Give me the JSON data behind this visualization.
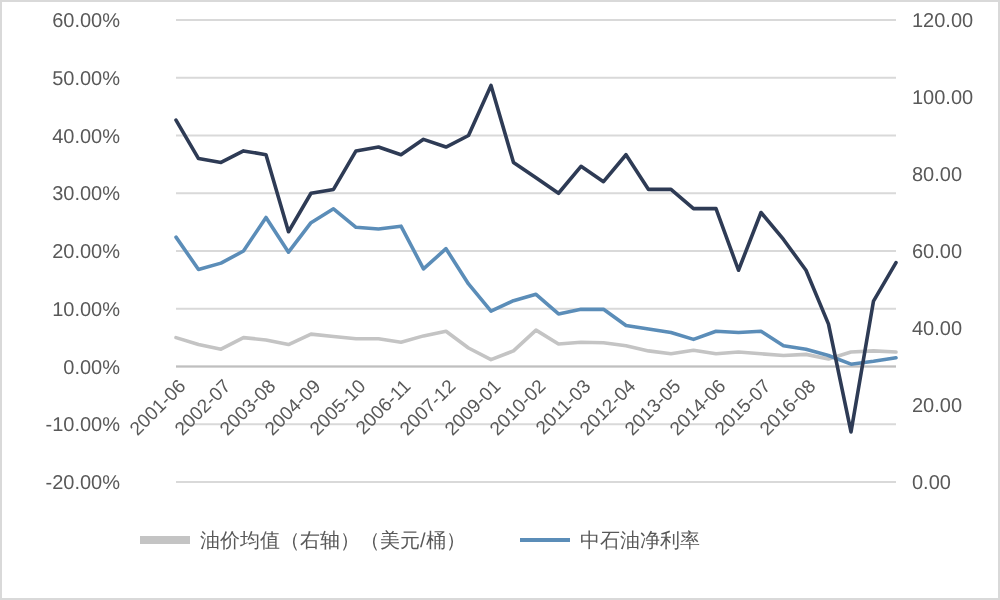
{
  "chart_data": {
    "type": "line",
    "categories": [
      "2001-06",
      null,
      "2002-07",
      null,
      "2003-08",
      null,
      "2004-09",
      null,
      "2005-10",
      null,
      "2006-11",
      null,
      "2007-12",
      null,
      "2009-01",
      null,
      "2010-02",
      null,
      "2011-03",
      null,
      "2012-04",
      null,
      "2013-05",
      null,
      "2014-06",
      null,
      "2015-07",
      null,
      "2016-08",
      null,
      null,
      null,
      null
    ],
    "series": [
      {
        "name": "油价均值（右轴）（美元/桶）",
        "color": "#c4c4c4",
        "values": [
          5.0,
          3.8,
          3.0,
          5.0,
          4.6,
          3.8,
          5.6,
          5.2,
          4.8,
          4.8,
          4.2,
          5.3,
          6.1,
          3.2,
          1.2,
          2.7,
          6.3,
          3.9,
          4.2,
          4.1,
          3.6,
          2.7,
          2.2,
          2.8,
          2.2,
          2.5,
          2.2,
          1.9,
          2.1,
          1.3,
          2.5,
          2.7,
          2.5
        ]
      },
      {
        "name": "中石油净利率",
        "color": "#5b8db8",
        "values": [
          22.4,
          16.8,
          17.9,
          20.0,
          25.8,
          19.8,
          24.9,
          27.3,
          24.1,
          23.8,
          24.3,
          16.9,
          20.4,
          14.3,
          9.6,
          11.4,
          12.5,
          9.1,
          9.9,
          9.9,
          7.1,
          6.5,
          5.9,
          4.7,
          6.1,
          5.9,
          6.1,
          3.6,
          3.0,
          1.9,
          0.4,
          0.9,
          1.5
        ]
      },
      {
        "color": "#2e3b55",
        "axis": "y2",
        "values": [
          94,
          84,
          83,
          86,
          85,
          65,
          75,
          76,
          86,
          87,
          85,
          89,
          87,
          90,
          103,
          83,
          79,
          75,
          82,
          78,
          85,
          76,
          76,
          71,
          71,
          55,
          70,
          63,
          55,
          41,
          13,
          47,
          57
        ]
      }
    ],
    "ylim": [
      -20,
      60
    ],
    "yticks": [
      {
        "value": -20,
        "label": "-20.00%"
      },
      {
        "value": -10,
        "label": "-10.00%"
      },
      {
        "value": 0,
        "label": "0.00%"
      },
      {
        "value": 10,
        "label": "10.00%"
      },
      {
        "value": 20,
        "label": "20.00%"
      },
      {
        "value": 30,
        "label": "30.00%"
      },
      {
        "value": 40,
        "label": "40.00%"
      },
      {
        "value": 50,
        "label": "50.00%"
      },
      {
        "value": 60,
        "label": "60.00%"
      }
    ],
    "y2lim": [
      0,
      120
    ],
    "y2ticks": [
      {
        "value": 0,
        "label": "0.00"
      },
      {
        "value": 20,
        "label": "20.00"
      },
      {
        "value": 40,
        "label": "40.00"
      },
      {
        "value": 60,
        "label": "60.00"
      },
      {
        "value": 80,
        "label": "80.00"
      },
      {
        "value": 100,
        "label": "100.00"
      },
      {
        "value": 120,
        "label": "120.00"
      }
    ],
    "grid": "y",
    "legend": "bottom",
    "marker": "none",
    "line_style": "solid"
  }
}
